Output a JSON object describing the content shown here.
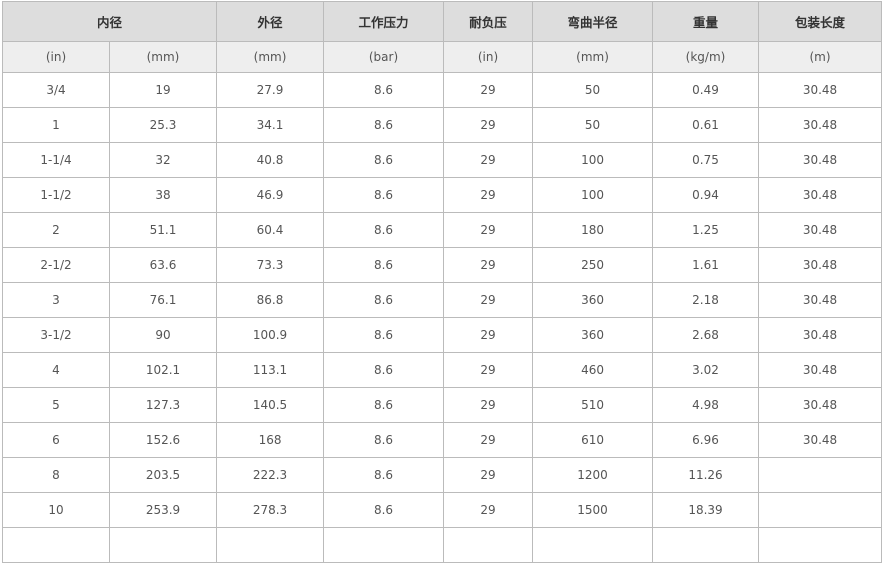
{
  "table": {
    "header": [
      "内径",
      "外径",
      "工作压力",
      "耐负压",
      "弯曲半径",
      "重量",
      "包装长度"
    ],
    "units": [
      "(in)",
      "(mm)",
      "(mm)",
      "(bar)",
      "(in)",
      "(mm)",
      "(kg/m)",
      "(m)"
    ],
    "rows": [
      [
        "3/4",
        "19",
        "27.9",
        "8.6",
        "29",
        "50",
        "0.49",
        "30.48"
      ],
      [
        "1",
        "25.3",
        "34.1",
        "8.6",
        "29",
        "50",
        "0.61",
        "30.48"
      ],
      [
        "1-1/4",
        "32",
        "40.8",
        "8.6",
        "29",
        "100",
        "0.75",
        "30.48"
      ],
      [
        "1-1/2",
        "38",
        "46.9",
        "8.6",
        "29",
        "100",
        "0.94",
        "30.48"
      ],
      [
        "2",
        "51.1",
        "60.4",
        "8.6",
        "29",
        "180",
        "1.25",
        "30.48"
      ],
      [
        "2-1/2",
        "63.6",
        "73.3",
        "8.6",
        "29",
        "250",
        "1.61",
        "30.48"
      ],
      [
        "3",
        "76.1",
        "86.8",
        "8.6",
        "29",
        "360",
        "2.18",
        "30.48"
      ],
      [
        "3-1/2",
        "90",
        "100.9",
        "8.6",
        "29",
        "360",
        "2.68",
        "30.48"
      ],
      [
        "4",
        "102.1",
        "113.1",
        "8.6",
        "29",
        "460",
        "3.02",
        "30.48"
      ],
      [
        "5",
        "127.3",
        "140.5",
        "8.6",
        "29",
        "510",
        "4.98",
        "30.48"
      ],
      [
        "6",
        "152.6",
        "168",
        "8.6",
        "29",
        "610",
        "6.96",
        "30.48"
      ],
      [
        "8",
        "203.5",
        "222.3",
        "8.6",
        "29",
        "1200",
        "11.26",
        ""
      ],
      [
        "10",
        "253.9",
        "278.3",
        "8.6",
        "29",
        "1500",
        "18.39",
        ""
      ],
      [
        "",
        "",
        "",
        "",
        "",
        "",
        "",
        ""
      ]
    ]
  },
  "colors": {
    "header_bg": "#dddddd",
    "unit_bg": "#eeeeee",
    "border": "#bbbbbb",
    "text": "#555555"
  }
}
